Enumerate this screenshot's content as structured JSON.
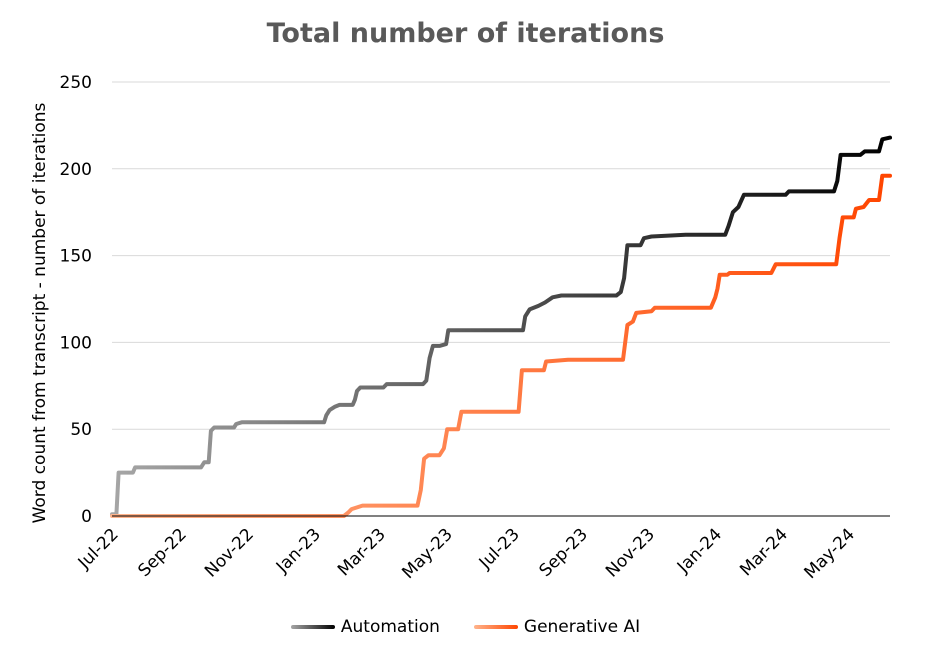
{
  "chart_data": {
    "type": "line",
    "title": "Total number of iterations",
    "xlabel": "",
    "ylabel": "Word count from transcript - number of iterations",
    "ylim": [
      0,
      250
    ],
    "yticks": [
      0,
      50,
      100,
      150,
      200,
      250
    ],
    "xlim": [
      "2022-07-01",
      "2024-06-08"
    ],
    "xticks": [
      {
        "date": "2022-07-01",
        "label": "Jul-22"
      },
      {
        "date": "2022-09-01",
        "label": "Sep-22"
      },
      {
        "date": "2022-11-01",
        "label": "Nov-22"
      },
      {
        "date": "2023-01-01",
        "label": "Jan-23"
      },
      {
        "date": "2023-03-01",
        "label": "Mar-23"
      },
      {
        "date": "2023-05-01",
        "label": "May-23"
      },
      {
        "date": "2023-07-01",
        "label": "Jul-23"
      },
      {
        "date": "2023-09-01",
        "label": "Sep-23"
      },
      {
        "date": "2023-11-01",
        "label": "Nov-23"
      },
      {
        "date": "2024-01-01",
        "label": "Jan-24"
      },
      {
        "date": "2024-03-01",
        "label": "Mar-24"
      },
      {
        "date": "2024-05-01",
        "label": "May-24"
      }
    ],
    "grid": true,
    "legend_position": "bottom",
    "series": [
      {
        "name": "Automation",
        "color_start": "#a6a6a6",
        "color_end": "#000000",
        "points": [
          [
            "2022-07-01",
            1
          ],
          [
            "2022-07-05",
            1
          ],
          [
            "2022-07-07",
            25
          ],
          [
            "2022-07-20",
            25
          ],
          [
            "2022-07-22",
            28
          ],
          [
            "2022-09-20",
            28
          ],
          [
            "2022-09-23",
            31
          ],
          [
            "2022-09-27",
            31
          ],
          [
            "2022-09-29",
            49
          ],
          [
            "2022-10-02",
            51
          ],
          [
            "2022-10-20",
            51
          ],
          [
            "2022-10-22",
            53
          ],
          [
            "2022-10-27",
            54
          ],
          [
            "2023-01-10",
            54
          ],
          [
            "2023-01-12",
            58
          ],
          [
            "2023-01-15",
            61
          ],
          [
            "2023-01-20",
            63
          ],
          [
            "2023-01-24",
            64
          ],
          [
            "2023-02-05",
            64
          ],
          [
            "2023-02-07",
            67
          ],
          [
            "2023-02-09",
            72
          ],
          [
            "2023-02-12",
            74
          ],
          [
            "2023-03-05",
            74
          ],
          [
            "2023-03-08",
            76
          ],
          [
            "2023-04-10",
            76
          ],
          [
            "2023-04-13",
            78
          ],
          [
            "2023-04-16",
            91
          ],
          [
            "2023-04-19",
            98
          ],
          [
            "2023-04-25",
            98
          ],
          [
            "2023-05-01",
            99
          ],
          [
            "2023-05-03",
            107
          ],
          [
            "2023-07-10",
            107
          ],
          [
            "2023-07-12",
            115
          ],
          [
            "2023-07-16",
            119
          ],
          [
            "2023-07-24",
            121
          ],
          [
            "2023-07-30",
            123
          ],
          [
            "2023-08-06",
            126
          ],
          [
            "2023-08-14",
            127
          ],
          [
            "2023-10-03",
            127
          ],
          [
            "2023-10-07",
            129
          ],
          [
            "2023-10-10",
            137
          ],
          [
            "2023-10-13",
            156
          ],
          [
            "2023-10-25",
            156
          ],
          [
            "2023-10-28",
            160
          ],
          [
            "2023-11-04",
            161
          ],
          [
            "2023-12-05",
            162
          ],
          [
            "2024-01-10",
            162
          ],
          [
            "2024-01-13",
            167
          ],
          [
            "2024-01-17",
            175
          ],
          [
            "2024-01-22",
            178
          ],
          [
            "2024-01-27",
            185
          ],
          [
            "2024-03-05",
            185
          ],
          [
            "2024-03-08",
            187
          ],
          [
            "2024-04-18",
            187
          ],
          [
            "2024-04-21",
            193
          ],
          [
            "2024-04-24",
            208
          ],
          [
            "2024-05-12",
            208
          ],
          [
            "2024-05-16",
            210
          ],
          [
            "2024-05-29",
            210
          ],
          [
            "2024-06-01",
            217
          ],
          [
            "2024-06-08",
            218
          ]
        ]
      },
      {
        "name": "Generative AI",
        "color_start": "#ffb48c",
        "color_end": "#ff4500",
        "points": [
          [
            "2022-07-01",
            0
          ],
          [
            "2023-01-28",
            0
          ],
          [
            "2023-02-01",
            2
          ],
          [
            "2023-02-04",
            4
          ],
          [
            "2023-02-14",
            6
          ],
          [
            "2023-04-05",
            6
          ],
          [
            "2023-04-08",
            15
          ],
          [
            "2023-04-11",
            33
          ],
          [
            "2023-04-15",
            35
          ],
          [
            "2023-04-25",
            35
          ],
          [
            "2023-04-29",
            39
          ],
          [
            "2023-05-02",
            50
          ],
          [
            "2023-05-12",
            50
          ],
          [
            "2023-05-15",
            60
          ],
          [
            "2023-07-06",
            60
          ],
          [
            "2023-07-09",
            84
          ],
          [
            "2023-07-29",
            84
          ],
          [
            "2023-07-31",
            89
          ],
          [
            "2023-08-20",
            90
          ],
          [
            "2023-10-09",
            90
          ],
          [
            "2023-10-13",
            110
          ],
          [
            "2023-10-18",
            112
          ],
          [
            "2023-10-21",
            117
          ],
          [
            "2023-11-04",
            118
          ],
          [
            "2023-11-07",
            120
          ],
          [
            "2023-12-28",
            120
          ],
          [
            "2024-01-01",
            126
          ],
          [
            "2024-01-03",
            131
          ],
          [
            "2024-01-05",
            139
          ],
          [
            "2024-01-12",
            139
          ],
          [
            "2024-01-14",
            140
          ],
          [
            "2024-02-21",
            140
          ],
          [
            "2024-02-25",
            145
          ],
          [
            "2024-04-20",
            145
          ],
          [
            "2024-04-23",
            160
          ],
          [
            "2024-04-26",
            172
          ],
          [
            "2024-05-06",
            172
          ],
          [
            "2024-05-08",
            177
          ],
          [
            "2024-05-15",
            178
          ],
          [
            "2024-05-20",
            182
          ],
          [
            "2024-05-29",
            182
          ],
          [
            "2024-06-01",
            196
          ],
          [
            "2024-06-08",
            196
          ]
        ]
      }
    ]
  },
  "colors": {
    "grid": "#d9d9d9",
    "axis": "#000000"
  }
}
